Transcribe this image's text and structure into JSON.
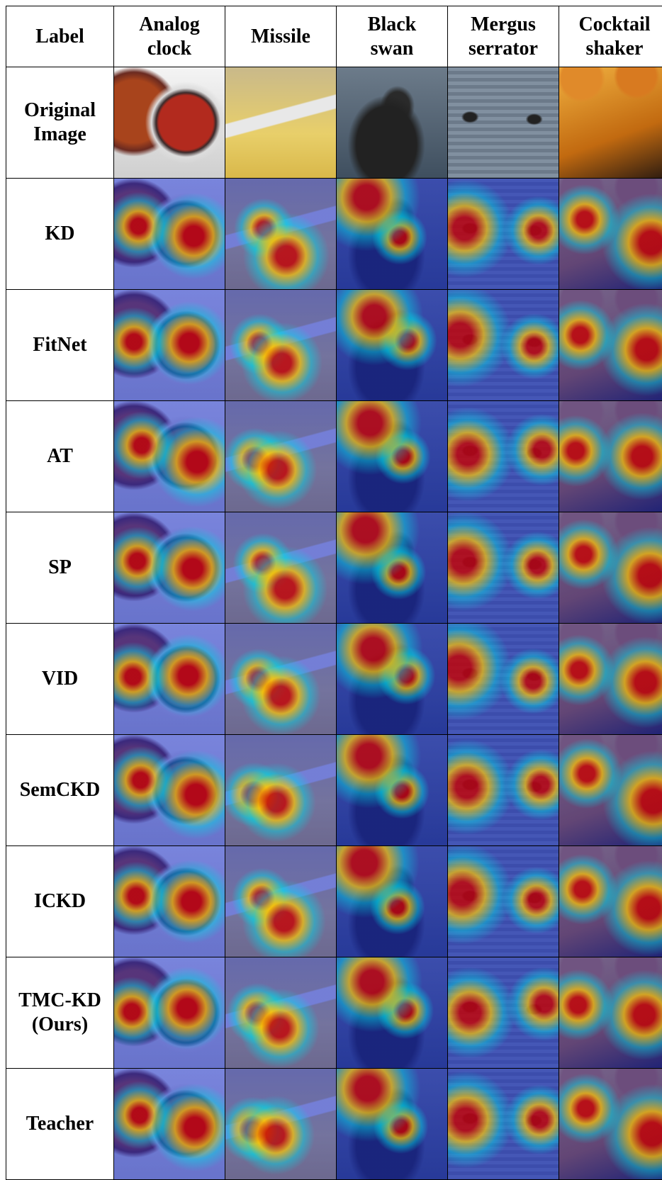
{
  "header": [
    "Label",
    "Analog clock",
    "Missile",
    "Black swan",
    "Mergus serrator",
    "Cocktail shaker"
  ],
  "rows": [
    "Original Image",
    "KD",
    "FitNet",
    "AT",
    "SP",
    "VID",
    "SemCKD",
    "ICKD",
    "TMC-KD (Ours)",
    "Teacher"
  ]
}
